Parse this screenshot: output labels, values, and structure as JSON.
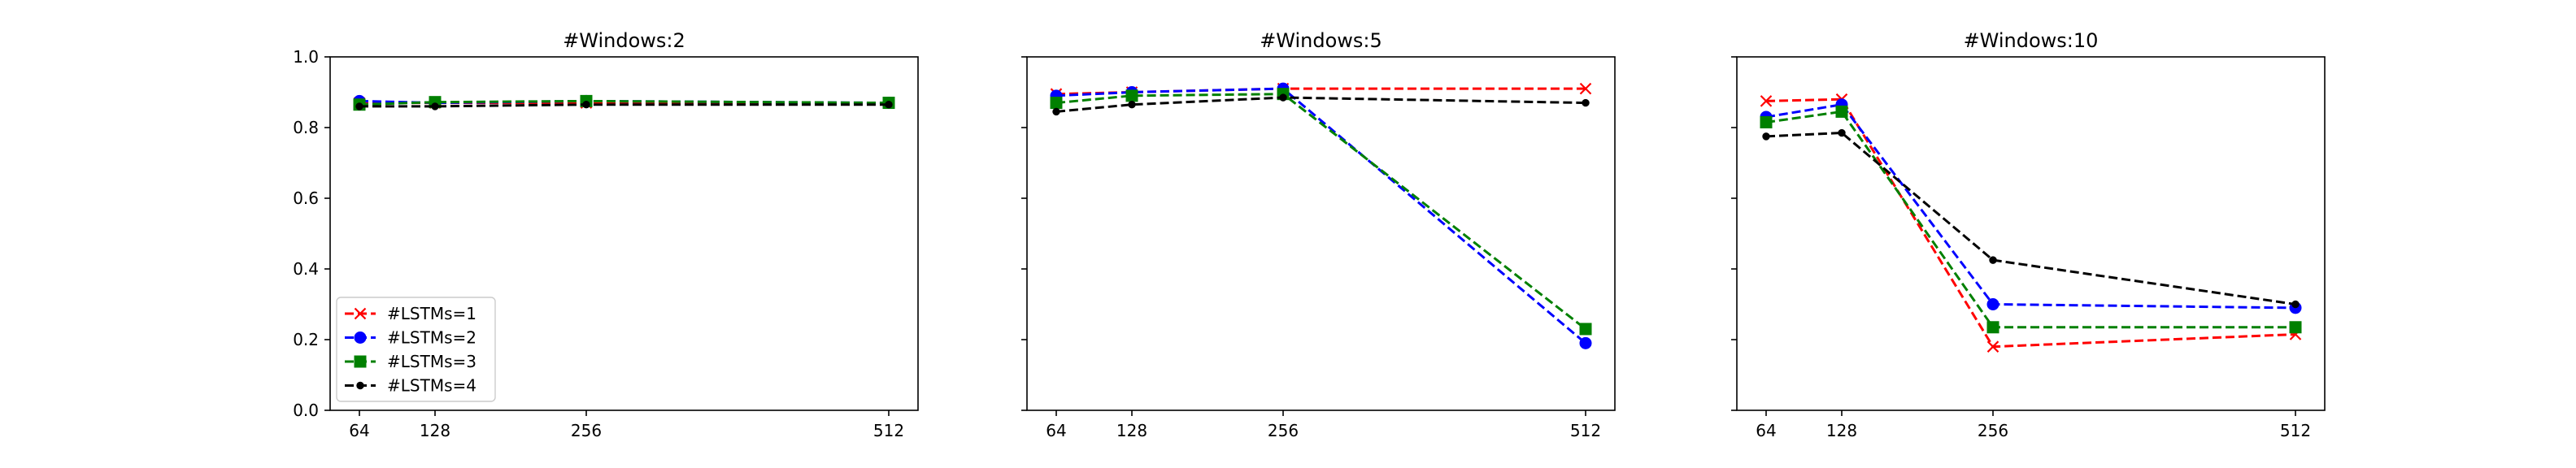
{
  "chart_data": [
    {
      "type": "line",
      "title": "#Windows:2",
      "xlabel": "",
      "ylabel": "",
      "x": [
        64,
        128,
        256,
        512
      ],
      "xticks": [
        "64",
        "128",
        "256",
        "512"
      ],
      "ylim": [
        0.0,
        1.0
      ],
      "yticks": [
        "0.0",
        "0.2",
        "0.4",
        "0.6",
        "0.8",
        "1.0"
      ],
      "legend": "lower-left",
      "series": [
        {
          "name": "#LSTMs=1",
          "values": [
            0.87,
            0.87,
            0.87,
            0.87
          ]
        },
        {
          "name": "#LSTMs=2",
          "values": [
            0.875,
            0.87,
            0.875,
            0.87
          ]
        },
        {
          "name": "#LSTMs=3",
          "values": [
            0.865,
            0.872,
            0.875,
            0.87
          ]
        },
        {
          "name": "#LSTMs=4",
          "values": [
            0.86,
            0.86,
            0.865,
            0.865
          ]
        }
      ]
    },
    {
      "type": "line",
      "title": "#Windows:5",
      "xlabel": "",
      "ylabel": "",
      "x": [
        64,
        128,
        256,
        512
      ],
      "xticks": [
        "64",
        "128",
        "256",
        "512"
      ],
      "ylim": [
        0.0,
        1.0
      ],
      "legend": "none",
      "series": [
        {
          "name": "#LSTMs=1",
          "values": [
            0.895,
            0.9,
            0.91,
            0.91
          ]
        },
        {
          "name": "#LSTMs=2",
          "values": [
            0.89,
            0.9,
            0.91,
            0.19
          ]
        },
        {
          "name": "#LSTMs=3",
          "values": [
            0.87,
            0.89,
            0.895,
            0.23
          ]
        },
        {
          "name": "#LSTMs=4",
          "values": [
            0.845,
            0.865,
            0.885,
            0.87
          ]
        }
      ]
    },
    {
      "type": "line",
      "title": "#Windows:10",
      "xlabel": "",
      "ylabel": "",
      "x": [
        64,
        128,
        256,
        512
      ],
      "xticks": [
        "64",
        "128",
        "256",
        "512"
      ],
      "ylim": [
        0.0,
        1.0
      ],
      "legend": "none",
      "series": [
        {
          "name": "#LSTMs=1",
          "values": [
            0.875,
            0.88,
            0.18,
            0.215
          ]
        },
        {
          "name": "#LSTMs=2",
          "values": [
            0.83,
            0.865,
            0.3,
            0.29
          ]
        },
        {
          "name": "#LSTMs=3",
          "values": [
            0.815,
            0.845,
            0.235,
            0.235
          ]
        },
        {
          "name": "#LSTMs=4",
          "values": [
            0.775,
            0.785,
            0.425,
            0.3
          ]
        }
      ]
    }
  ],
  "styles": [
    {
      "color": "#ff0000",
      "marker": "x-mark"
    },
    {
      "color": "#0000ff",
      "marker": "circle"
    },
    {
      "color": "#008000",
      "marker": "square"
    },
    {
      "color": "#000000",
      "marker": "point"
    }
  ]
}
